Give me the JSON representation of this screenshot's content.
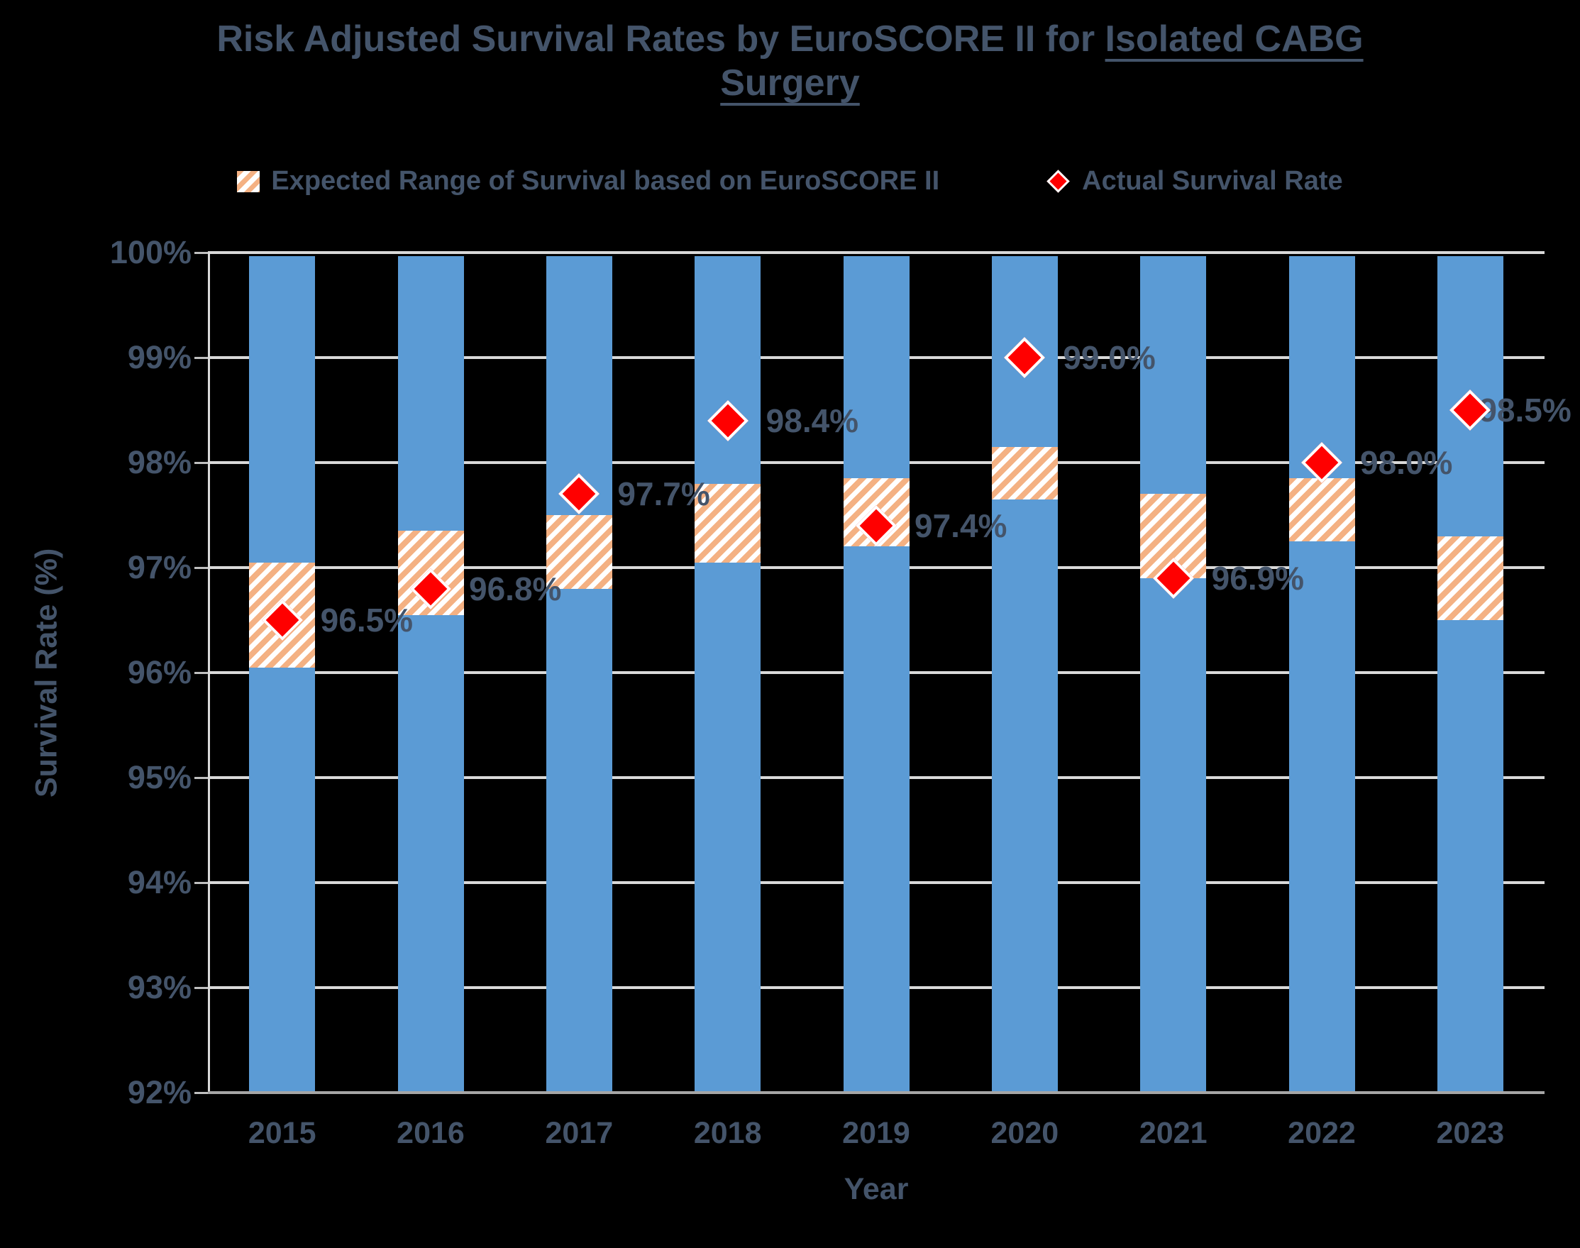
{
  "title": {
    "plain": "Risk Adjusted Survival Rates by EuroSCORE II for",
    "underlined_line1": "Isolated CABG",
    "underlined_line2": "Surgery"
  },
  "legend": [
    {
      "label": "Expected Range of Survival based on EuroSCORE II",
      "swatch": "hatched-square"
    },
    {
      "label": "Actual Survival Rate",
      "swatch": "red-diamond"
    }
  ],
  "axes": {
    "y_title": "Survival Rate (%)",
    "x_title": "Year",
    "y_ticks": [
      "100%",
      "99%",
      "98%",
      "97%",
      "96%",
      "95%",
      "94%",
      "93%",
      "92%"
    ]
  },
  "colors": {
    "background": "#000000",
    "bar_fill": "#5B9BD5",
    "range_stripe": "#F4B183",
    "range_background": "#FFFFFF",
    "marker_fill": "#FF0000",
    "marker_border": "#FFFFFF",
    "text": "#44546A",
    "gridline": "#D9D9D9",
    "bottom_axis_line": "#A6A6A6"
  },
  "chart_data": {
    "type": "bar",
    "title": "Risk Adjusted Survival Rates by EuroSCORE II for Isolated CABG Surgery",
    "xlabel": "Year",
    "ylabel": "Survival Rate (%)",
    "ylim": [
      92,
      100
    ],
    "y_tick_step": 1,
    "grid": true,
    "legend_position": "top",
    "categories": [
      "2015",
      "2016",
      "2017",
      "2018",
      "2019",
      "2020",
      "2021",
      "2022",
      "2023"
    ],
    "background_bars": {
      "description": "full-height blue columns, one per year",
      "from": 92,
      "to": 100
    },
    "series": [
      {
        "name": "Expected Range of Survival based on EuroSCORE II",
        "type": "floating-range-band",
        "low": [
          96.05,
          96.55,
          96.8,
          97.05,
          97.2,
          97.65,
          96.9,
          97.25,
          96.5
        ],
        "high": [
          97.05,
          97.35,
          97.5,
          97.8,
          97.85,
          98.15,
          97.7,
          97.85,
          97.3
        ]
      },
      {
        "name": "Actual Survival Rate",
        "type": "scatter",
        "marker": "diamond",
        "values": [
          96.5,
          96.8,
          97.7,
          98.4,
          97.4,
          99.0,
          96.9,
          98.0,
          98.5
        ],
        "labels": [
          "96.5%",
          "96.8%",
          "97.7%",
          "98.4%",
          "97.4%",
          "99.0%",
          "96.9%",
          "98.0%",
          "98.5%"
        ]
      }
    ]
  }
}
